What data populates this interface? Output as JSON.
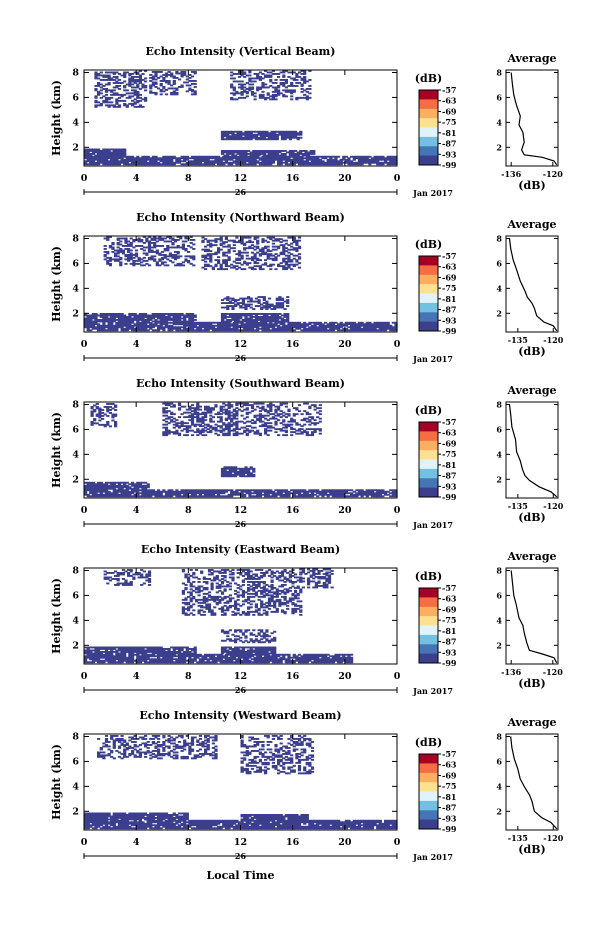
{
  "figure": {
    "time_label": "Local Time",
    "date_label": "Jan 2017",
    "x_day_label": "26",
    "cbar_unit": "(dB)",
    "avg_title": "Average",
    "avg_xlabel": "(dB)",
    "ylabel": "Height (km)"
  },
  "chart_data": [
    {
      "type": "heatmap",
      "title": "Echo Intensity (Vertical Beam)",
      "x_ticks": [
        "0",
        "4",
        "8",
        "12",
        "16",
        "20",
        "0"
      ],
      "xlim": [
        0,
        24
      ],
      "y_ticks": [
        "2",
        "4",
        "6",
        "8"
      ],
      "ylim": [
        0.5,
        8.2
      ],
      "colorbar_ticks": [
        "-57",
        "-63",
        "-69",
        "-75",
        "-81",
        "-87",
        "-93",
        "-99"
      ],
      "colorbar_colors": [
        "#a50026",
        "#f46d43",
        "#fdae61",
        "#fee090",
        "#e0f3f8",
        "#74c0e0",
        "#4575b4",
        "#3b3f8c"
      ],
      "cells_color": "#3b3f8c",
      "blocks": [
        {
          "t0": 0,
          "t1": 23.8,
          "h0": 0.6,
          "h1": 1.3
        },
        {
          "t0": 0,
          "t1": 3.2,
          "h0": 1.3,
          "h1": 1.9
        },
        {
          "t0": 10.5,
          "t1": 17.5,
          "h0": 1.3,
          "h1": 1.7
        },
        {
          "t0": 10.5,
          "t1": 16.5,
          "h0": 2.6,
          "h1": 3.3
        },
        {
          "t0": 0.8,
          "t1": 4.8,
          "h0": 5.2,
          "h1": 8.1
        },
        {
          "t0": 5,
          "t1": 8.5,
          "h0": 6.2,
          "h1": 8.1
        },
        {
          "t0": 11.2,
          "t1": 17.2,
          "h0": 5.8,
          "h1": 8.1
        }
      ],
      "average": {
        "xlim": [
          -138,
          -118
        ],
        "x_ticks": [
          "-136",
          "-120"
        ],
        "y_ticks": [
          "2",
          "4",
          "6",
          "8"
        ],
        "profile": [
          [
            -118.5,
            0.6
          ],
          [
            -119.5,
            0.9
          ],
          [
            -124,
            1.2
          ],
          [
            -131,
            1.4
          ],
          [
            -132,
            1.8
          ],
          [
            -131,
            2.4
          ],
          [
            -131.5,
            3.2
          ],
          [
            -133,
            3.8
          ],
          [
            -132.5,
            4.5
          ],
          [
            -134,
            5.4
          ],
          [
            -135,
            6.2
          ],
          [
            -135.5,
            7
          ],
          [
            -136,
            8
          ]
        ]
      }
    },
    {
      "type": "heatmap",
      "title": "Echo Intensity (Northward Beam)",
      "x_ticks": [
        "0",
        "4",
        "8",
        "12",
        "16",
        "20",
        "0"
      ],
      "xlim": [
        0,
        24
      ],
      "y_ticks": [
        "2",
        "4",
        "6",
        "8"
      ],
      "ylim": [
        0.5,
        8.2
      ],
      "colorbar_ticks": [
        "-57",
        "-63",
        "-69",
        "-75",
        "-81",
        "-87",
        "-93",
        "-99"
      ],
      "colorbar_colors": [
        "#a50026",
        "#f46d43",
        "#fdae61",
        "#fee090",
        "#e0f3f8",
        "#74c0e0",
        "#4575b4",
        "#3b3f8c"
      ],
      "cells_color": "#3b3f8c",
      "blocks": [
        {
          "t0": 0,
          "t1": 23.8,
          "h0": 0.6,
          "h1": 1.3
        },
        {
          "t0": 0,
          "t1": 8.5,
          "h0": 1.3,
          "h1": 2.0
        },
        {
          "t0": 10.5,
          "t1": 15.5,
          "h0": 1.3,
          "h1": 2.0
        },
        {
          "t0": 10.5,
          "t1": 15.5,
          "h0": 2.3,
          "h1": 3.3
        },
        {
          "t0": 1.5,
          "t1": 8.5,
          "h0": 5.8,
          "h1": 8.1
        },
        {
          "t0": 9,
          "t1": 16.5,
          "h0": 5.5,
          "h1": 8.1
        }
      ],
      "average": {
        "xlim": [
          -140,
          -118
        ],
        "x_ticks": [
          "-135",
          "-120"
        ],
        "y_ticks": [
          "2",
          "4",
          "6",
          "8"
        ],
        "profile": [
          [
            -118.5,
            0.6
          ],
          [
            -120,
            1.0
          ],
          [
            -124,
            1.3
          ],
          [
            -127,
            1.8
          ],
          [
            -128,
            2.4
          ],
          [
            -129,
            2.8
          ],
          [
            -131,
            3.3
          ],
          [
            -132,
            3.8
          ],
          [
            -134,
            4.6
          ],
          [
            -135.5,
            5.5
          ],
          [
            -137,
            6.3
          ],
          [
            -138,
            7.2
          ],
          [
            -138.5,
            8
          ]
        ]
      }
    },
    {
      "type": "heatmap",
      "title": "Echo Intensity (Southward Beam)",
      "x_ticks": [
        "0",
        "4",
        "8",
        "12",
        "16",
        "20",
        "0"
      ],
      "xlim": [
        0,
        24
      ],
      "y_ticks": [
        "2",
        "4",
        "6",
        "8"
      ],
      "ylim": [
        0.5,
        8.2
      ],
      "colorbar_ticks": [
        "-57",
        "-63",
        "-69",
        "-75",
        "-81",
        "-87",
        "-93",
        "-99"
      ],
      "colorbar_colors": [
        "#a50026",
        "#f46d43",
        "#fdae61",
        "#fee090",
        "#e0f3f8",
        "#74c0e0",
        "#4575b4",
        "#3b3f8c"
      ],
      "cells_color": "#3b3f8c",
      "blocks": [
        {
          "t0": 0,
          "t1": 23.8,
          "h0": 0.6,
          "h1": 1.2
        },
        {
          "t0": 0,
          "t1": 5,
          "h0": 1.2,
          "h1": 1.8
        },
        {
          "t0": 10.5,
          "t1": 13,
          "h0": 2.2,
          "h1": 3.0
        },
        {
          "t0": 6,
          "t1": 11,
          "h0": 5.5,
          "h1": 8.1
        },
        {
          "t0": 11,
          "t1": 18,
          "h0": 5.5,
          "h1": 8.1
        },
        {
          "t0": 0.5,
          "t1": 2.5,
          "h0": 6.2,
          "h1": 8.1
        }
      ],
      "average": {
        "xlim": [
          -140,
          -118
        ],
        "x_ticks": [
          "-135",
          "-120"
        ],
        "y_ticks": [
          "2",
          "4",
          "6",
          "8"
        ],
        "profile": [
          [
            -118.5,
            0.6
          ],
          [
            -121,
            1.0
          ],
          [
            -126,
            1.4
          ],
          [
            -130,
            1.9
          ],
          [
            -132,
            2.3
          ],
          [
            -133,
            2.8
          ],
          [
            -134,
            3.5
          ],
          [
            -135.5,
            4.2
          ],
          [
            -136,
            5.2
          ],
          [
            -137.5,
            6.2
          ],
          [
            -138,
            7.2
          ],
          [
            -138.5,
            8
          ]
        ]
      }
    },
    {
      "type": "heatmap",
      "title": "Echo Intensity (Eastward Beam)",
      "x_ticks": [
        "0",
        "4",
        "8",
        "12",
        "16",
        "20",
        "0"
      ],
      "xlim": [
        0,
        24
      ],
      "y_ticks": [
        "2",
        "4",
        "6",
        "8"
      ],
      "ylim": [
        0.5,
        8.2
      ],
      "colorbar_ticks": [
        "-57",
        "-63",
        "-69",
        "-75",
        "-81",
        "-87",
        "-93",
        "-99"
      ],
      "colorbar_colors": [
        "#a50026",
        "#f46d43",
        "#fdae61",
        "#fee090",
        "#e0f3f8",
        "#74c0e0",
        "#4575b4",
        "#3b3f8c"
      ],
      "cells_color": "#3b3f8c",
      "blocks": [
        {
          "t0": 0,
          "t1": 20.5,
          "h0": 0.6,
          "h1": 1.3
        },
        {
          "t0": 0,
          "t1": 8.5,
          "h0": 1.3,
          "h1": 1.8
        },
        {
          "t0": 10.5,
          "t1": 14.5,
          "h0": 1.3,
          "h1": 1.9
        },
        {
          "t0": 10.5,
          "t1": 14.5,
          "h0": 2.2,
          "h1": 3.2
        },
        {
          "t0": 1.5,
          "t1": 5,
          "h0": 6.8,
          "h1": 8.1
        },
        {
          "t0": 7.5,
          "t1": 16.5,
          "h0": 4.4,
          "h1": 8.1
        },
        {
          "t0": 16.5,
          "t1": 19,
          "h0": 6.6,
          "h1": 8.1
        }
      ],
      "average": {
        "xlim": [
          -138,
          -118
        ],
        "x_ticks": [
          "-136",
          "-120"
        ],
        "y_ticks": [
          "2",
          "4",
          "6",
          "8"
        ],
        "profile": [
          [
            -118.5,
            0.6
          ],
          [
            -119.5,
            1.0
          ],
          [
            -124,
            1.3
          ],
          [
            -129,
            1.6
          ],
          [
            -130,
            2.2
          ],
          [
            -131,
            3
          ],
          [
            -131.5,
            3.6
          ],
          [
            -133,
            4.2
          ],
          [
            -134,
            5.2
          ],
          [
            -135,
            6
          ],
          [
            -135.5,
            7
          ],
          [
            -136,
            8
          ]
        ]
      }
    },
    {
      "type": "heatmap",
      "title": "Echo Intensity (Westward Beam)",
      "x_ticks": [
        "0",
        "4",
        "8",
        "12",
        "16",
        "20",
        "0"
      ],
      "xlim": [
        0,
        24
      ],
      "y_ticks": [
        "2",
        "4",
        "6",
        "8"
      ],
      "ylim": [
        0.5,
        8.2
      ],
      "colorbar_ticks": [
        "-57",
        "-63",
        "-69",
        "-75",
        "-81",
        "-87",
        "-93",
        "-99"
      ],
      "colorbar_colors": [
        "#a50026",
        "#f46d43",
        "#fdae61",
        "#fee090",
        "#e0f3f8",
        "#74c0e0",
        "#4575b4",
        "#3b3f8c"
      ],
      "cells_color": "#3b3f8c",
      "blocks": [
        {
          "t0": 0,
          "t1": 23.8,
          "h0": 0.6,
          "h1": 1.3
        },
        {
          "t0": 0,
          "t1": 8,
          "h0": 1.3,
          "h1": 1.8
        },
        {
          "t0": 12,
          "t1": 17,
          "h0": 1.3,
          "h1": 1.7
        },
        {
          "t0": 1,
          "t1": 10,
          "h0": 6.2,
          "h1": 8.1
        },
        {
          "t0": 12,
          "t1": 17.5,
          "h0": 5,
          "h1": 8.1
        }
      ],
      "average": {
        "xlim": [
          -140,
          -118
        ],
        "x_ticks": [
          "-135",
          "-120"
        ],
        "y_ticks": [
          "2",
          "4",
          "6",
          "8"
        ],
        "profile": [
          [
            -118.5,
            0.6
          ],
          [
            -121,
            1.1
          ],
          [
            -125,
            1.5
          ],
          [
            -128,
            2.0
          ],
          [
            -129,
            2.8
          ],
          [
            -130,
            3.3
          ],
          [
            -132,
            3.9
          ],
          [
            -134,
            4.6
          ],
          [
            -135,
            5.4
          ],
          [
            -136.5,
            6.2
          ],
          [
            -137.5,
            7.1
          ],
          [
            -138,
            8
          ]
        ]
      }
    }
  ]
}
